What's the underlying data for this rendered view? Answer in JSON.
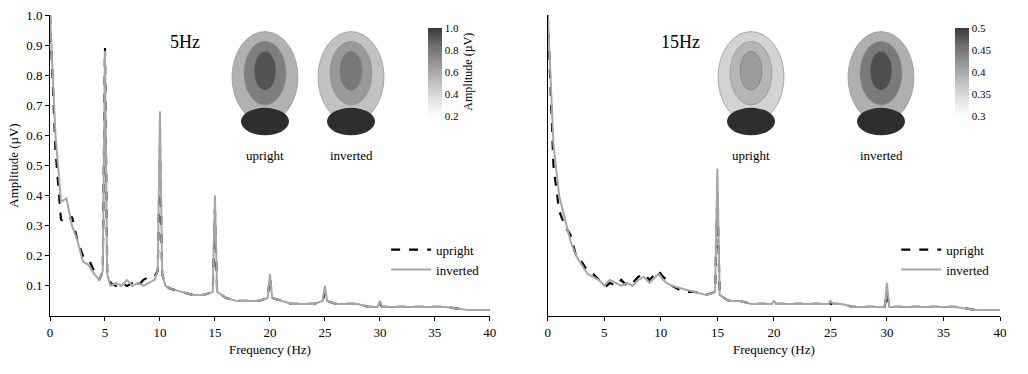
{
  "chart_data": [
    {
      "type": "line",
      "title": "5Hz",
      "x_label": "Frequency (Hz)",
      "y_label": "Amplitude (µV)",
      "x": [
        0,
        0.5,
        1,
        1.5,
        2,
        2.5,
        3,
        3.5,
        4,
        4.5,
        4.8,
        5,
        5.2,
        5.5,
        6,
        6.5,
        7,
        7.5,
        8,
        8.5,
        9,
        9.5,
        9.8,
        10,
        10.2,
        10.5,
        11,
        12,
        13,
        14,
        14.8,
        15,
        15.2,
        16,
        17,
        18,
        19,
        19.8,
        20,
        20.2,
        21,
        22,
        23,
        24,
        24.8,
        25,
        25.2,
        26,
        27,
        28,
        29,
        29.8,
        30,
        30.2,
        32,
        34,
        36,
        38,
        40
      ],
      "series": [
        {
          "name": "upright",
          "color": "#000000",
          "line_style": "dash",
          "values": [
            1.0,
            0.55,
            0.32,
            0.31,
            0.33,
            0.25,
            0.2,
            0.19,
            0.15,
            0.12,
            0.15,
            0.89,
            0.15,
            0.11,
            0.1,
            0.11,
            0.1,
            0.11,
            0.1,
            0.12,
            0.13,
            0.13,
            0.15,
            0.56,
            0.14,
            0.1,
            0.09,
            0.08,
            0.07,
            0.07,
            0.08,
            0.35,
            0.08,
            0.06,
            0.05,
            0.05,
            0.05,
            0.06,
            0.13,
            0.06,
            0.05,
            0.04,
            0.04,
            0.04,
            0.05,
            0.08,
            0.05,
            0.04,
            0.04,
            0.04,
            0.03,
            0.03,
            0.04,
            0.03,
            0.03,
            0.03,
            0.03,
            0.02,
            0.02
          ]
        },
        {
          "name": "inverted",
          "color": "#a6a6a6",
          "line_style": "solid",
          "values": [
            1.0,
            0.6,
            0.38,
            0.39,
            0.3,
            0.25,
            0.18,
            0.17,
            0.14,
            0.12,
            0.15,
            0.88,
            0.14,
            0.1,
            0.11,
            0.1,
            0.12,
            0.1,
            0.11,
            0.1,
            0.11,
            0.12,
            0.15,
            0.68,
            0.14,
            0.1,
            0.09,
            0.08,
            0.07,
            0.07,
            0.08,
            0.4,
            0.08,
            0.06,
            0.05,
            0.05,
            0.05,
            0.06,
            0.14,
            0.06,
            0.05,
            0.04,
            0.04,
            0.04,
            0.05,
            0.1,
            0.05,
            0.04,
            0.04,
            0.04,
            0.03,
            0.03,
            0.05,
            0.03,
            0.03,
            0.03,
            0.03,
            0.02,
            0.02
          ]
        }
      ],
      "xlim": [
        0,
        40
      ],
      "xticks": [
        0,
        5,
        10,
        15,
        20,
        25,
        30,
        35,
        40
      ],
      "ylim": [
        0,
        1
      ],
      "yticks": [
        0.1,
        0.2,
        0.3,
        0.4,
        0.5,
        0.6,
        0.7,
        0.8,
        0.9,
        {
          "value": 1,
          "label": "1.0"
        }
      ],
      "grid": false,
      "legend": "lower right",
      "topomaps": [
        {
          "label": "upright",
          "value": 0.9
        },
        {
          "label": "inverted",
          "value": 0.75
        }
      ],
      "colorbar": {
        "title": "Amplitude (µV)",
        "range": [
          0.2,
          1
        ],
        "ticks": [
          0.2,
          0.4,
          0.6,
          0.8,
          {
            "value": 1,
            "label": "1.0"
          }
        ]
      }
    },
    {
      "type": "line",
      "title": "15Hz",
      "x_label": "Frequency (Hz)",
      "x": [
        0,
        0.5,
        1,
        1.5,
        2,
        2.5,
        3,
        3.5,
        4,
        4.5,
        4.8,
        5,
        5.2,
        5.5,
        6,
        6.5,
        7,
        7.5,
        8,
        8.5,
        9,
        9.5,
        9.8,
        10,
        10.2,
        10.5,
        11,
        12,
        13,
        14,
        14.8,
        15,
        15.2,
        16,
        17,
        18,
        19,
        19.8,
        20,
        20.2,
        21,
        22,
        23,
        24,
        24.8,
        25,
        25.2,
        26,
        27,
        28,
        29,
        29.8,
        30,
        30.2,
        32,
        34,
        36,
        38,
        40
      ],
      "series": [
        {
          "name": "upright",
          "color": "#000000",
          "line_style": "dash",
          "values": [
            1.0,
            0.5,
            0.35,
            0.3,
            0.27,
            0.2,
            0.18,
            0.15,
            0.14,
            0.12,
            0.11,
            0.11,
            0.1,
            0.11,
            0.1,
            0.12,
            0.1,
            0.11,
            0.13,
            0.14,
            0.12,
            0.14,
            0.15,
            0.14,
            0.13,
            0.12,
            0.1,
            0.08,
            0.08,
            0.07,
            0.08,
            0.41,
            0.07,
            0.05,
            0.05,
            0.04,
            0.04,
            0.04,
            0.04,
            0.04,
            0.04,
            0.04,
            0.04,
            0.04,
            0.04,
            0.04,
            0.04,
            0.04,
            0.03,
            0.03,
            0.03,
            0.03,
            0.08,
            0.03,
            0.03,
            0.03,
            0.03,
            0.02,
            0.02
          ]
        },
        {
          "name": "inverted",
          "color": "#a6a6a6",
          "line_style": "solid",
          "values": [
            1.0,
            0.57,
            0.4,
            0.32,
            0.25,
            0.2,
            0.17,
            0.14,
            0.13,
            0.12,
            0.11,
            0.1,
            0.11,
            0.12,
            0.11,
            0.1,
            0.11,
            0.1,
            0.12,
            0.13,
            0.11,
            0.13,
            0.14,
            0.13,
            0.12,
            0.11,
            0.1,
            0.09,
            0.08,
            0.07,
            0.08,
            0.49,
            0.07,
            0.05,
            0.05,
            0.04,
            0.04,
            0.04,
            0.05,
            0.04,
            0.04,
            0.04,
            0.04,
            0.04,
            0.04,
            0.05,
            0.04,
            0.04,
            0.03,
            0.03,
            0.03,
            0.03,
            0.11,
            0.03,
            0.03,
            0.03,
            0.03,
            0.02,
            0.02
          ]
        }
      ],
      "xlim": [
        0,
        40
      ],
      "xticks": [
        0,
        5,
        10,
        15,
        20,
        25,
        30,
        35,
        40
      ],
      "ylim": [
        0,
        1
      ],
      "tick_labels": "x",
      "grid": false,
      "legend": "lower right",
      "topomaps": [
        {
          "label": "upright",
          "value": 0.4
        },
        {
          "label": "inverted",
          "value": 0.48
        }
      ],
      "colorbar": {
        "range": [
          0.3,
          0.5
        ],
        "ticks": [
          0.3,
          0.35,
          0.4,
          0.45,
          0.5
        ]
      }
    }
  ]
}
